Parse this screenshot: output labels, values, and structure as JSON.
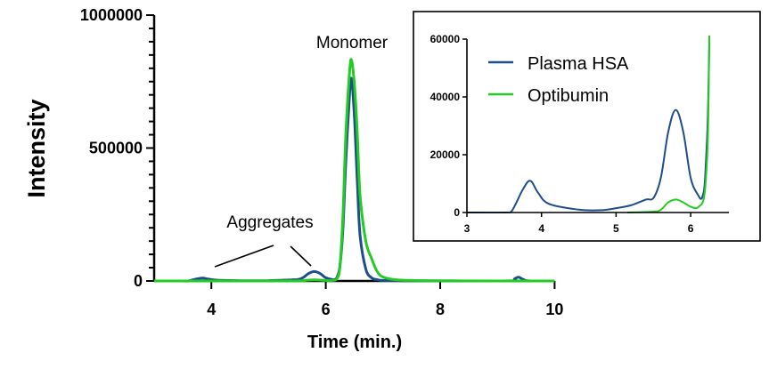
{
  "chart_data": [
    {
      "type": "line",
      "title": "",
      "xlabel": "Time (min.)",
      "ylabel": "Intensity",
      "xlim": [
        3,
        10
      ],
      "ylim": [
        0,
        1000000
      ],
      "xticks": [
        4,
        6,
        8,
        10
      ],
      "yticks": [
        0,
        500000,
        1000000
      ],
      "ytick_labels": [
        "0",
        "500000",
        "1000000"
      ],
      "y_minor_step": 50000,
      "grid": false,
      "annotations": {
        "monomer": "Monomer",
        "aggregates": "Aggregates"
      },
      "series": [
        {
          "name": "Plasma HSA",
          "color": "#1f4e8c",
          "x": [
            3,
            3.5,
            3.6,
            3.75,
            3.85,
            3.95,
            4.1,
            4.5,
            4.8,
            5.0,
            5.2,
            5.4,
            5.5,
            5.6,
            5.7,
            5.8,
            5.9,
            6.0,
            6.1,
            6.15,
            6.2,
            6.25,
            6.3,
            6.35,
            6.42,
            6.45,
            6.5,
            6.55,
            6.6,
            6.7,
            6.8,
            6.9,
            7.0,
            7.5,
            8,
            9.2,
            9.3,
            9.37,
            9.45,
            9.55,
            10
          ],
          "y": [
            0,
            0,
            500,
            8000,
            11000,
            7000,
            3000,
            1000,
            800,
            1500,
            2500,
            4500,
            5000,
            12000,
            28000,
            35500,
            28000,
            12000,
            6000,
            5000,
            15000,
            60000,
            200000,
            450000,
            720000,
            760000,
            620000,
            380000,
            170000,
            45000,
            12000,
            5000,
            2000,
            800,
            500,
            500,
            8000,
            14000,
            6000,
            500,
            0
          ]
        },
        {
          "name": "Optibumin",
          "color": "#22cc22",
          "x": [
            3,
            5.15,
            5.5,
            5.6,
            5.7,
            5.8,
            5.9,
            6.0,
            6.1,
            6.2,
            6.25,
            6.3,
            6.35,
            6.42,
            6.45,
            6.5,
            6.55,
            6.6,
            6.7,
            6.8,
            6.9,
            7.0,
            7.2,
            7.5,
            8,
            10
          ],
          "y": [
            0,
            0,
            300,
            1000,
            3500,
            4500,
            3500,
            2000,
            1800,
            10000,
            60000,
            250000,
            550000,
            800000,
            830000,
            740000,
            560000,
            320000,
            150000,
            85000,
            35000,
            15000,
            5000,
            2000,
            500,
            0
          ]
        }
      ]
    },
    {
      "type": "line",
      "title": "",
      "xlabel": "",
      "ylabel": "",
      "xlim": [
        3,
        6.5
      ],
      "ylim": [
        0,
        60000
      ],
      "xticks": [
        3,
        4,
        5,
        6
      ],
      "yticks": [
        0,
        20000,
        40000,
        60000
      ],
      "grid": false,
      "legend": {
        "placement": "top-left",
        "entries": [
          "Plasma HSA",
          "Optibumin"
        ]
      },
      "series_ref": "same data as main chart, Optibumin shown from 5.15"
    }
  ]
}
